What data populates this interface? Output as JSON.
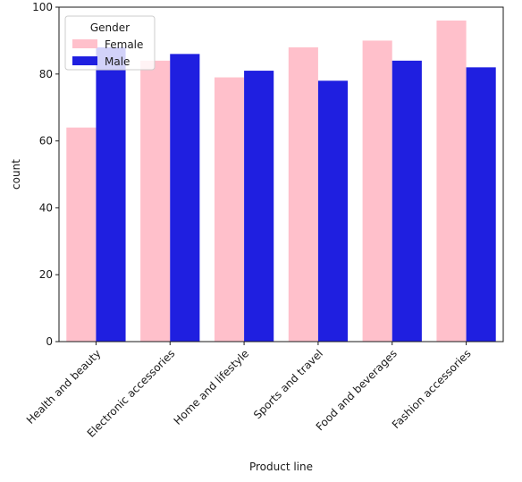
{
  "chart_data": {
    "type": "bar",
    "title": "",
    "xlabel": "Product line",
    "ylabel": "count",
    "categories": [
      "Health and beauty",
      "Electronic accessories",
      "Home and lifestyle",
      "Sports and travel",
      "Food and beverages",
      "Fashion accessories"
    ],
    "series": [
      {
        "name": "Female",
        "color": "#ffc0cb",
        "values": [
          64,
          84,
          79,
          88,
          90,
          96
        ]
      },
      {
        "name": "Male",
        "color": "#1f1fe0",
        "values": [
          88,
          86,
          81,
          78,
          84,
          82
        ]
      }
    ],
    "ylim": [
      0,
      100
    ],
    "yticks": [
      0,
      20,
      40,
      60,
      80,
      100
    ],
    "legend": {
      "title": "Gender",
      "placement": "top-left"
    },
    "grid": false
  }
}
